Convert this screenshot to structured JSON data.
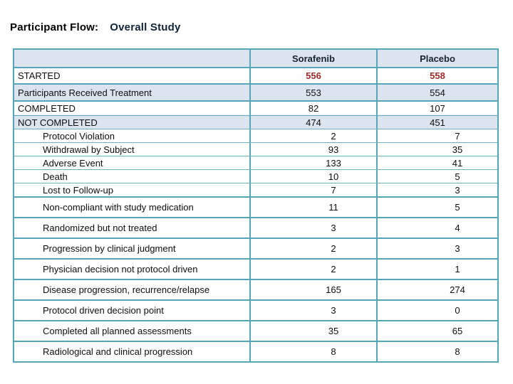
{
  "title": {
    "prefix": "Participant Flow:",
    "suffix": "Overall Study"
  },
  "table": {
    "columns": [
      "",
      "Sorafenib",
      "Placebo"
    ],
    "rows": [
      {
        "label": "STARTED",
        "sorafenib": "556",
        "placebo": "558"
      },
      {
        "label": "Participants Received Treatment",
        "sorafenib": "553",
        "placebo": "554"
      },
      {
        "label": "COMPLETED",
        "sorafenib": "82",
        "placebo": "107"
      },
      {
        "label": "NOT COMPLETED",
        "sorafenib": "474",
        "placebo": "451"
      },
      {
        "label": "Protocol Violation",
        "sorafenib": "2",
        "placebo": "7"
      },
      {
        "label": "Withdrawal by Subject",
        "sorafenib": "93",
        "placebo": "35"
      },
      {
        "label": "Adverse Event",
        "sorafenib": "133",
        "placebo": "41"
      },
      {
        "label": "Death",
        "sorafenib": "10",
        "placebo": "5"
      },
      {
        "label": "Lost to Follow-up",
        "sorafenib": "7",
        "placebo": "3"
      },
      {
        "label": "Non-compliant with study medication",
        "sorafenib": "11",
        "placebo": "5"
      },
      {
        "label": "Randomized but not treated",
        "sorafenib": "3",
        "placebo": "4"
      },
      {
        "label": "Progression by clinical judgment",
        "sorafenib": "2",
        "placebo": "3"
      },
      {
        "label": "Physician decision not protocol driven",
        "sorafenib": "2",
        "placebo": "1"
      },
      {
        "label": "Disease progression, recurrence/relapse",
        "sorafenib": "165",
        "placebo": "274"
      },
      {
        "label": "Protocol driven decision point",
        "sorafenib": "3",
        "placebo": "0"
      },
      {
        "label": "Completed all planned assessments",
        "sorafenib": "35",
        "placebo": "65"
      },
      {
        "label": "Radiological and clinical progression",
        "sorafenib": "8",
        "placebo": "8"
      }
    ]
  },
  "colors": {
    "border_teal": "#55a6ba",
    "row_shade_blue": "#dce4f0",
    "started_red": "#9e2b2b",
    "header_text": "#16242f"
  }
}
